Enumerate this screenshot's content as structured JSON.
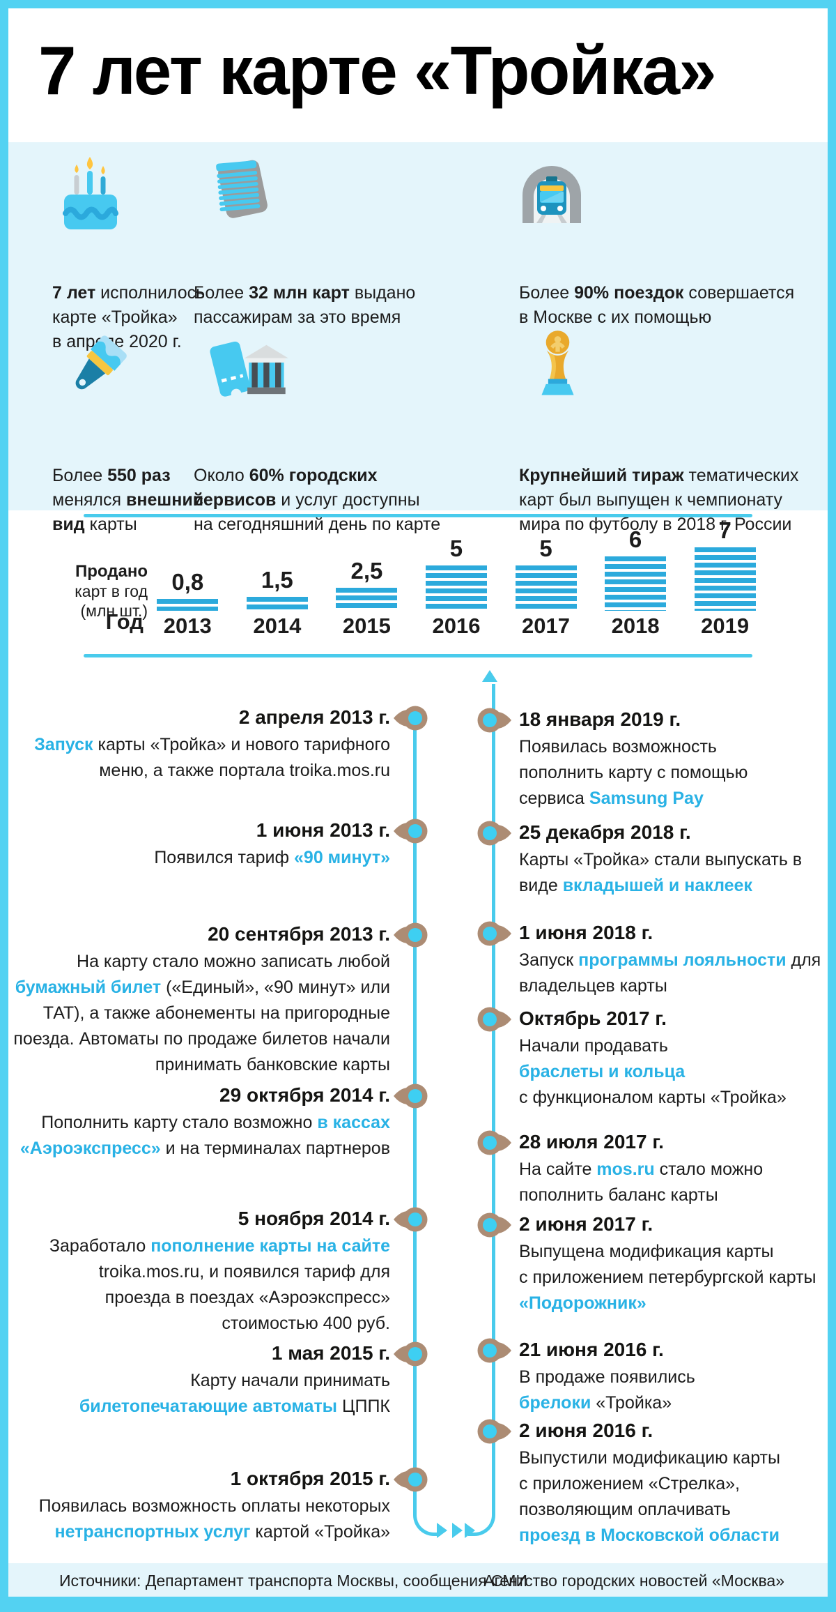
{
  "title": "7 лет карте «Тройка»",
  "facts": [
    {
      "icon": "birthday-cake",
      "pre": "",
      "b1": "7 лет",
      "mid": " исполнилось\nкарте «Тройка»\nв апреле 2020 г.",
      "b2": "",
      "post": ""
    },
    {
      "icon": "card-stack",
      "pre": "Более ",
      "b1": "32 млн карт",
      "mid": " выдано\nпассажирам за это время",
      "b2": "",
      "post": ""
    },
    {
      "icon": "metro-train",
      "pre": "Более ",
      "b1": "90% поездок",
      "mid": " совершается\nв Москве с их помощью",
      "b2": "",
      "post": ""
    },
    {
      "icon": "paintbrush",
      "pre": "Более ",
      "b1": "550 раз",
      "mid": "\nменялся ",
      "b2": "внешний\nвид",
      "post": " карты"
    },
    {
      "icon": "ticket-and-building",
      "pre": "Около ",
      "b1": "60% городских\nсервисов",
      "mid": " и услуг доступны\nна сегодняшний день по карте",
      "b2": "",
      "post": ""
    },
    {
      "icon": "world-cup-trophy",
      "pre": "",
      "b1": "Крупнейший тираж",
      "mid": " тематических\nкарт был выпущен к чемпионату\nмира по футболу в 2018 г. России",
      "b2": "",
      "post": ""
    }
  ],
  "chart_data": {
    "type": "bar",
    "title": "Продано карт в год (млн шт.)",
    "categories": [
      "2013",
      "2014",
      "2015",
      "2016",
      "2017",
      "2018",
      "2019"
    ],
    "values": [
      0.8,
      1.5,
      2.5,
      5,
      5,
      6,
      7
    ],
    "value_labels": [
      "0,8",
      "1,5",
      "2,5",
      "5",
      "5",
      "6",
      "7"
    ],
    "ylabel_lines": [
      "Продано",
      "карт в год",
      "(млн шт.)"
    ],
    "xlabel": "Год",
    "bar_color": "#2CAADC",
    "ylim": [
      0,
      7
    ],
    "grid": false,
    "legend": "none"
  },
  "timeline": {
    "left": [
      {
        "date": "2 апреля 2013 г.",
        "pre": "",
        "hl": "Запуск",
        "post": " карты «Тройка» и нового тарифного\nменю, а также портала troika.mos.ru"
      },
      {
        "date": "1 июня 2013 г.",
        "pre": "Появился тариф ",
        "hl": "«90 минут»",
        "post": ""
      },
      {
        "date": "20 сентября 2013 г.",
        "pre": "На карту стало можно записать любой\n",
        "hl": "бумажный билет",
        "post": " («Единый», «90 минут» или\nТАТ), а также абонементы на пригородные\nпоезда. Автоматы по продаже билетов начали\nпринимать банковские карты"
      },
      {
        "date": "29 октября 2014 г.",
        "pre": "Пополнить карту стало возможно ",
        "hl": "в кассах\n«Аэроэкспресс»",
        "post": " и на терминалах партнеров"
      },
      {
        "date": "5 ноября 2014 г.",
        "pre": "Заработало ",
        "hl": "пополнение карты на сайте",
        "post": "\ntroika.mos.ru, и появился тариф для\nпроезда в поездах «Аэроэкспресс»\nстоимостью 400 руб."
      },
      {
        "date": "1 мая 2015 г.",
        "pre": "Карту начали принимать\n",
        "hl": "билетопечатающие автоматы",
        "post": " ЦППК"
      },
      {
        "date": "1 октября 2015 г.",
        "pre": "Появилась возможность оплаты некоторых\n",
        "hl": "нетранспортных услуг",
        "post": " картой «Тройка»"
      }
    ],
    "right": [
      {
        "date": "18 января 2019 г.",
        "pre": "Появилась возможность\nпополнить карту с помощью\nсервиса ",
        "hl": "Samsung Pay",
        "post": ""
      },
      {
        "date": "25 декабря 2018 г.",
        "pre": "Карты «Тройка» стали выпускать в\nвиде ",
        "hl": "вкладышей и наклеек",
        "post": ""
      },
      {
        "date": "1 июня 2018 г.",
        "pre": "Запуск ",
        "hl": "программы лояльности",
        "post": " для\nвладельцев карты"
      },
      {
        "date": "Октябрь 2017 г.",
        "pre": "Начали продавать\n",
        "hl": "браслеты и кольца",
        "post": "\nс функционалом карты «Тройка»"
      },
      {
        "date": "28 июля 2017 г.",
        "pre": "На сайте ",
        "hl": "mos.ru",
        "post": " стало можно\nпополнить баланс карты"
      },
      {
        "date": "2 июня 2017 г.",
        "pre": "Выпущена модификация карты\nс приложением петербургской карты\n",
        "hl": "«Подорожник»",
        "post": ""
      },
      {
        "date": "21 июня 2016 г.",
        "pre": "В продаже появились\n",
        "hl": "брелоки",
        "post": " «Тройка»"
      },
      {
        "date": "2 июня 2016 г.",
        "pre": "Выпустили модификацию карты\nс приложением «Стрелка»,\nпозволяющим оплачивать\n",
        "hl": "проезд в Московской области",
        "post": ""
      }
    ]
  },
  "footer": {
    "sources": "Источники: Департамент транспорта Москвы, сообщения СМИ",
    "agency": "Агентство городских новостей «Москва»"
  },
  "colors": {
    "frame": "#53D2F2",
    "panel": "#E4F5FB",
    "line": "#49CBEC",
    "bar": "#2CAADC",
    "highlight_text": "#29B2E5",
    "marker_ring": "#AC8C74",
    "marker_center": "#3ECFF2"
  }
}
